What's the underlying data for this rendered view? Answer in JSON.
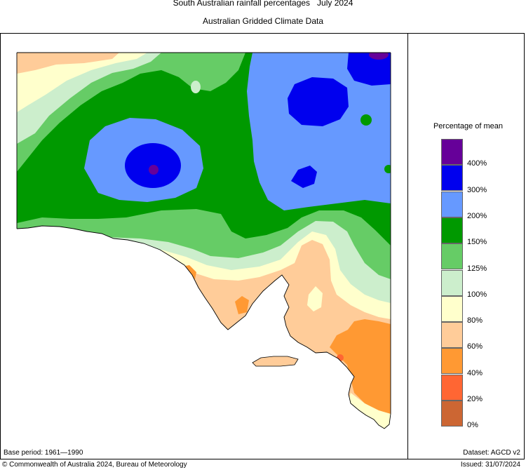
{
  "title": "South Australian rainfall percentages   July 2024",
  "subtitle": "Australian Gridded Climate Data",
  "legend": {
    "title": "Percentage of mean",
    "bins": [
      {
        "color": "#660099",
        "label": "400%"
      },
      {
        "color": "#0000ee",
        "label": "300%"
      },
      {
        "color": "#6699ff",
        "label": "200%"
      },
      {
        "color": "#009900",
        "label": "150%"
      },
      {
        "color": "#66cc66",
        "label": "125%"
      },
      {
        "color": "#cceecc",
        "label": "100%"
      },
      {
        "color": "#ffffcc",
        "label": "80%"
      },
      {
        "color": "#ffcc99",
        "label": "60%"
      },
      {
        "color": "#ff9933",
        "label": "40%"
      },
      {
        "color": "#ff6633",
        "label": "20%"
      },
      {
        "color": "#cc6633",
        "label": "0%"
      }
    ]
  },
  "footer": {
    "base_period": "Base period: 1961—1990",
    "dataset": "Dataset: AGCD v2",
    "copyright": "© Commonwealth of Australia 2024, Bureau of Meteorology",
    "issued": "Issued: 31/07/2024"
  }
}
